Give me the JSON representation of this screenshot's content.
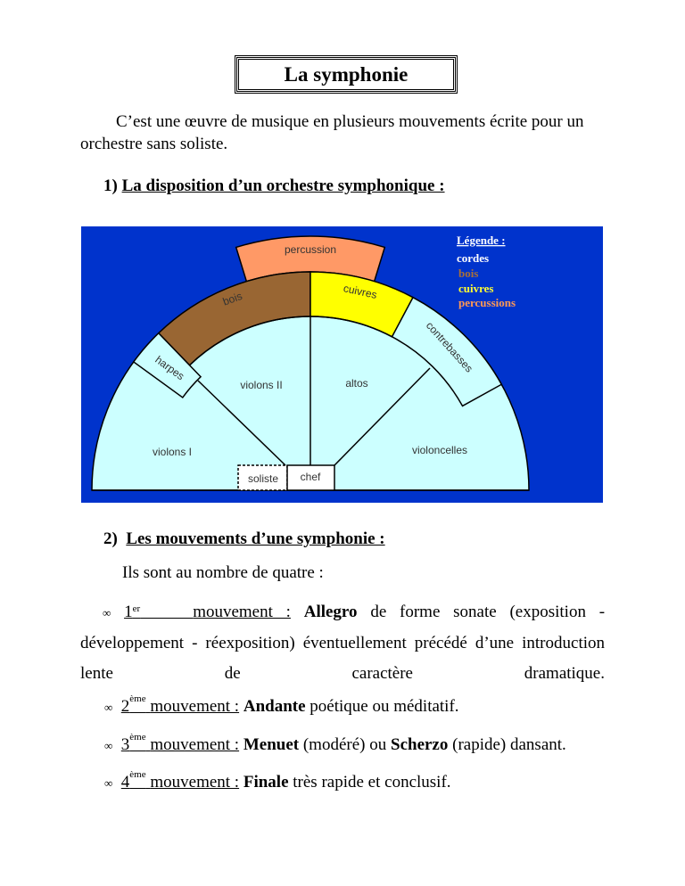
{
  "title": "La symphonie",
  "intro": {
    "line1": "C’est une œuvre de musique en plusieurs mouvements écrite pour un",
    "line2": "orchestre sans soliste."
  },
  "section1": {
    "number": "1)",
    "heading": "La disposition d’un orchestre symphonique :"
  },
  "diagram": {
    "colors": {
      "background": "#0033cc",
      "cordes": "#ccffff",
      "bois": "#996633",
      "cuivres": "#ffff00",
      "percussion": "#ff9966"
    },
    "sections": {
      "percussion": "percussion",
      "bois": "bois",
      "cuivres": "cuivres",
      "contrebasses": "contrebasses",
      "harpes": "harpes",
      "violons2": "violons II",
      "altos": "altos",
      "violons1": "violons I",
      "violoncelles": "violoncelles",
      "soliste": "soliste",
      "chef": "chef"
    },
    "legend": {
      "title": "Légende :",
      "items": [
        "cordes",
        "bois",
        "cuivres",
        "percussions"
      ],
      "item_colors": [
        "#ffffff",
        "#a8703a",
        "#ffff33",
        "#ff9955"
      ]
    }
  },
  "section2": {
    "number": "2)",
    "heading": "Les mouvements d’une symphonie :",
    "intro": "Ils sont au nombre de quatre :"
  },
  "movements": [
    {
      "bullet": "∞",
      "num": "1",
      "sup": "er",
      "label": "mouvement :",
      "bold": "Allegro",
      "rest": "de forme sonate (exposition - développement - réexposition) éventuellement précédé d’une introduction lente de caractère dramatique."
    },
    {
      "bullet": "∞",
      "num": "2",
      "sup": "ème",
      "label": "mouvement :",
      "bold": "Andante",
      "rest": "poétique ou méditatif."
    },
    {
      "bullet": "∞",
      "num": "3",
      "sup": "ème",
      "label": "mouvement :",
      "bold": "Menuet",
      "rest1": "(modéré) ou",
      "bold2": "Scherzo",
      "rest": "(rapide) dansant."
    },
    {
      "bullet": "∞",
      "num": "4",
      "sup": "ème",
      "label": "mouvement :",
      "bold": "Finale",
      "rest": "très rapide et conclusif."
    }
  ]
}
